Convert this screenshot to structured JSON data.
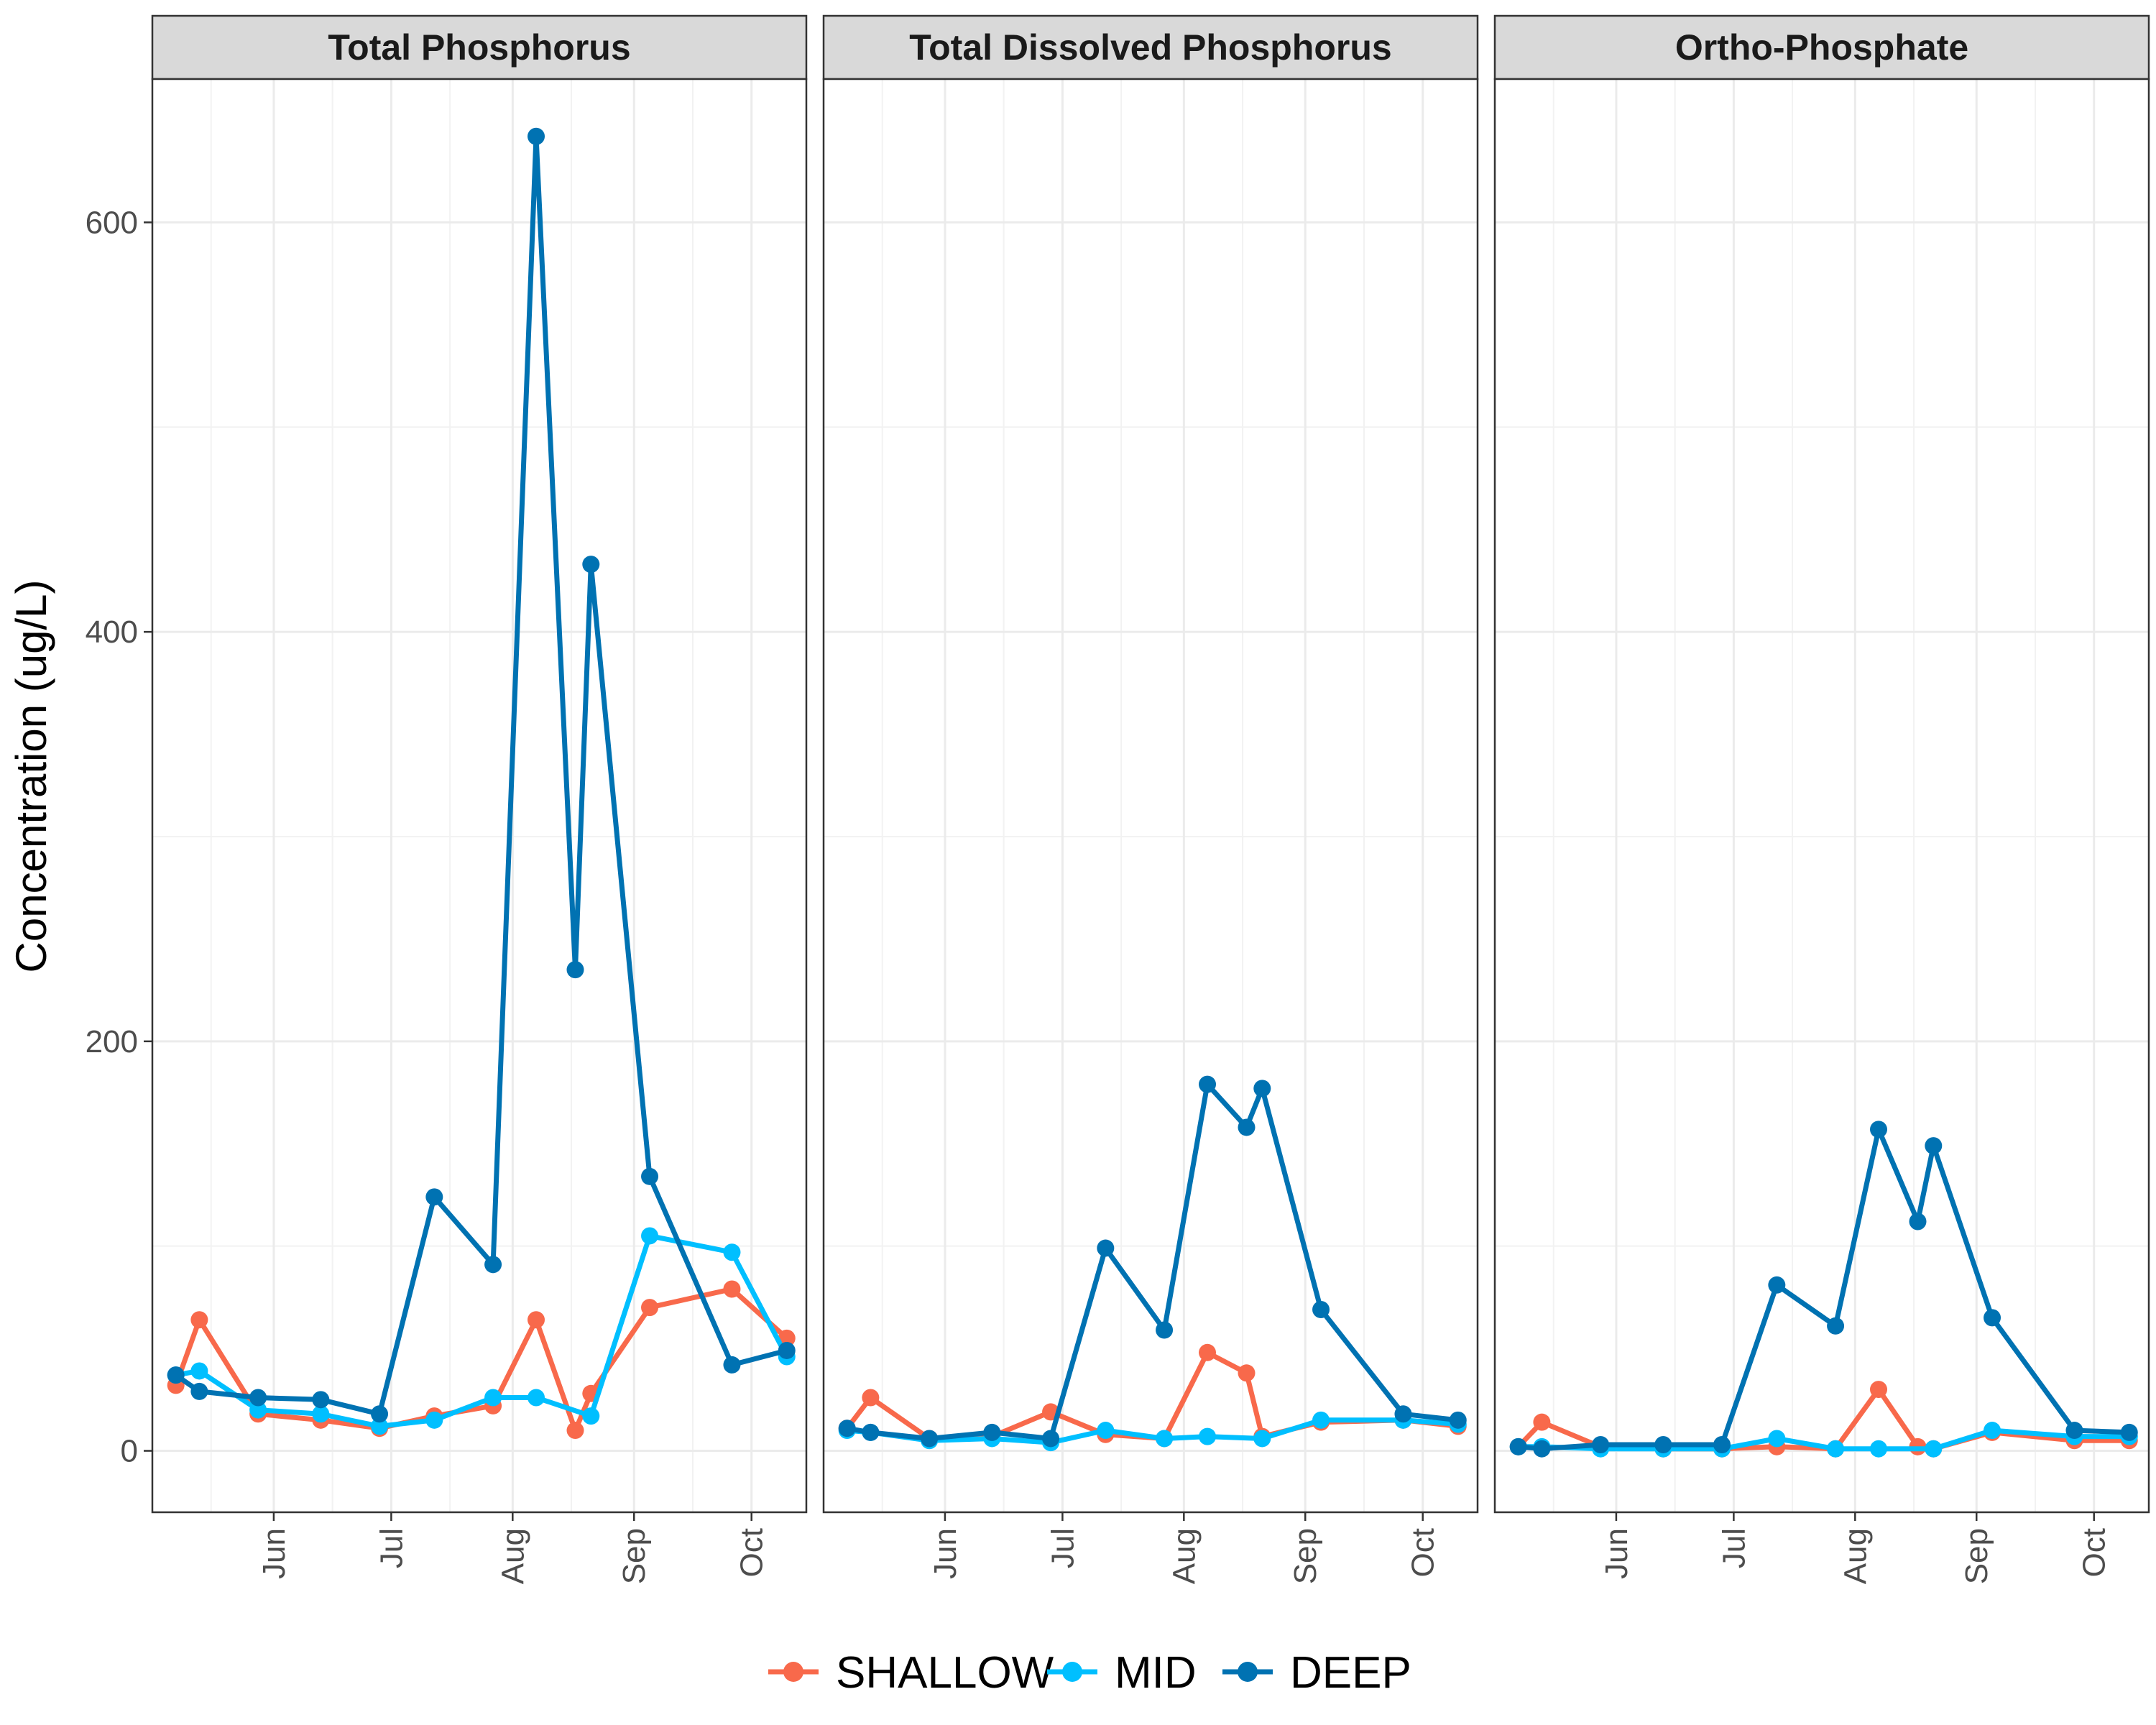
{
  "chart_data": {
    "type": "line",
    "ylabel": "Concentration (ug/L)",
    "xlabel": "",
    "ylim": [
      -30,
      670
    ],
    "xlim": [
      "2021-05-01",
      "2021-10-15"
    ],
    "y_ticks": [
      0,
      200,
      400,
      600
    ],
    "x_ticks": [
      {
        "date": "2021-06-01",
        "label": "Jun"
      },
      {
        "date": "2021-07-01",
        "label": "Jul"
      },
      {
        "date": "2021-08-01",
        "label": "Aug"
      },
      {
        "date": "2021-09-01",
        "label": "Sep"
      },
      {
        "date": "2021-10-01",
        "label": "Oct"
      }
    ],
    "x_minor_ticks": [
      "2021-05-16",
      "2021-06-16",
      "2021-07-16",
      "2021-08-16",
      "2021-09-16"
    ],
    "grid": true,
    "legend": {
      "position": "bottom",
      "entries": [
        "SHALLOW",
        "MID",
        "DEEP"
      ]
    },
    "colors": {
      "SHALLOW": "#f8694b",
      "MID": "#00bfff",
      "DEEP": "#0072b2"
    },
    "panels": [
      {
        "title": "Total Phosphorus",
        "series": [
          {
            "name": "SHALLOW",
            "points": [
              [
                "2021-05-07",
                32
              ],
              [
                "2021-05-13",
                64
              ],
              [
                "2021-05-28",
                18
              ],
              [
                "2021-06-13",
                15
              ],
              [
                "2021-06-28",
                11
              ],
              [
                "2021-07-12",
                17
              ],
              [
                "2021-07-27",
                22
              ],
              [
                "2021-08-07",
                64
              ],
              [
                "2021-08-17",
                10
              ],
              [
                "2021-08-21",
                28
              ],
              [
                "2021-09-05",
                70
              ],
              [
                "2021-09-26",
                79
              ],
              [
                "2021-10-10",
                55
              ]
            ]
          },
          {
            "name": "MID",
            "points": [
              [
                "2021-05-07",
                37
              ],
              [
                "2021-05-13",
                39
              ],
              [
                "2021-05-28",
                20
              ],
              [
                "2021-06-13",
                18
              ],
              [
                "2021-06-28",
                12
              ],
              [
                "2021-07-12",
                15
              ],
              [
                "2021-07-27",
                26
              ],
              [
                "2021-08-07",
                26
              ],
              [
                "2021-08-21",
                17
              ],
              [
                "2021-09-05",
                105
              ],
              [
                "2021-09-26",
                97
              ],
              [
                "2021-10-10",
                46
              ]
            ]
          },
          {
            "name": "DEEP",
            "points": [
              [
                "2021-05-07",
                37
              ],
              [
                "2021-05-13",
                29
              ],
              [
                "2021-05-28",
                26
              ],
              [
                "2021-06-13",
                25
              ],
              [
                "2021-06-28",
                18
              ],
              [
                "2021-07-12",
                124
              ],
              [
                "2021-07-27",
                91
              ],
              [
                "2021-08-07",
                642
              ],
              [
                "2021-08-17",
                235
              ],
              [
                "2021-08-21",
                433
              ],
              [
                "2021-09-05",
                134
              ],
              [
                "2021-09-26",
                42
              ],
              [
                "2021-10-10",
                49
              ]
            ]
          }
        ]
      },
      {
        "title": "Total Dissolved Phosphorus",
        "series": [
          {
            "name": "SHALLOW",
            "points": [
              [
                "2021-05-07",
                11
              ],
              [
                "2021-05-13",
                26
              ],
              [
                "2021-05-28",
                6
              ],
              [
                "2021-06-13",
                7
              ],
              [
                "2021-06-28",
                19
              ],
              [
                "2021-07-12",
                8
              ],
              [
                "2021-07-27",
                6
              ],
              [
                "2021-08-07",
                48
              ],
              [
                "2021-08-17",
                38
              ],
              [
                "2021-08-21",
                7
              ],
              [
                "2021-09-05",
                14
              ],
              [
                "2021-09-26",
                15
              ],
              [
                "2021-10-10",
                12
              ]
            ]
          },
          {
            "name": "MID",
            "points": [
              [
                "2021-05-07",
                10
              ],
              [
                "2021-05-13",
                9
              ],
              [
                "2021-05-28",
                5
              ],
              [
                "2021-06-13",
                6
              ],
              [
                "2021-06-28",
                4
              ],
              [
                "2021-07-12",
                10
              ],
              [
                "2021-07-27",
                6
              ],
              [
                "2021-08-07",
                7
              ],
              [
                "2021-08-21",
                6
              ],
              [
                "2021-09-05",
                15
              ],
              [
                "2021-09-26",
                15
              ],
              [
                "2021-10-10",
                13
              ]
            ]
          },
          {
            "name": "DEEP",
            "points": [
              [
                "2021-05-07",
                11
              ],
              [
                "2021-05-13",
                9
              ],
              [
                "2021-05-28",
                6
              ],
              [
                "2021-06-13",
                9
              ],
              [
                "2021-06-28",
                6
              ],
              [
                "2021-07-12",
                99
              ],
              [
                "2021-07-27",
                59
              ],
              [
                "2021-08-07",
                179
              ],
              [
                "2021-08-17",
                158
              ],
              [
                "2021-08-21",
                177
              ],
              [
                "2021-09-05",
                69
              ],
              [
                "2021-09-26",
                18
              ],
              [
                "2021-10-10",
                15
              ]
            ]
          }
        ]
      },
      {
        "title": "Ortho-Phosphate",
        "series": [
          {
            "name": "SHALLOW",
            "points": [
              [
                "2021-05-07",
                2
              ],
              [
                "2021-05-13",
                14
              ],
              [
                "2021-05-28",
                2
              ],
              [
                "2021-06-13",
                1
              ],
              [
                "2021-06-28",
                1
              ],
              [
                "2021-07-12",
                2
              ],
              [
                "2021-07-27",
                1
              ],
              [
                "2021-08-07",
                30
              ],
              [
                "2021-08-17",
                2
              ],
              [
                "2021-08-21",
                1
              ],
              [
                "2021-09-05",
                9
              ],
              [
                "2021-09-26",
                5
              ],
              [
                "2021-10-10",
                5
              ]
            ]
          },
          {
            "name": "MID",
            "points": [
              [
                "2021-05-07",
                2
              ],
              [
                "2021-05-13",
                2
              ],
              [
                "2021-05-28",
                1
              ],
              [
                "2021-06-13",
                1
              ],
              [
                "2021-06-28",
                1
              ],
              [
                "2021-07-12",
                6
              ],
              [
                "2021-07-27",
                1
              ],
              [
                "2021-08-07",
                1
              ],
              [
                "2021-08-21",
                1
              ],
              [
                "2021-09-05",
                10
              ],
              [
                "2021-09-26",
                7
              ],
              [
                "2021-10-10",
                7
              ]
            ]
          },
          {
            "name": "DEEP",
            "points": [
              [
                "2021-05-07",
                2
              ],
              [
                "2021-05-13",
                1
              ],
              [
                "2021-05-28",
                3
              ],
              [
                "2021-06-13",
                3
              ],
              [
                "2021-06-28",
                3
              ],
              [
                "2021-07-12",
                81
              ],
              [
                "2021-07-27",
                61
              ],
              [
                "2021-08-07",
                157
              ],
              [
                "2021-08-17",
                112
              ],
              [
                "2021-08-21",
                149
              ],
              [
                "2021-09-05",
                65
              ],
              [
                "2021-09-26",
                10
              ],
              [
                "2021-10-10",
                9
              ]
            ]
          }
        ]
      }
    ]
  }
}
